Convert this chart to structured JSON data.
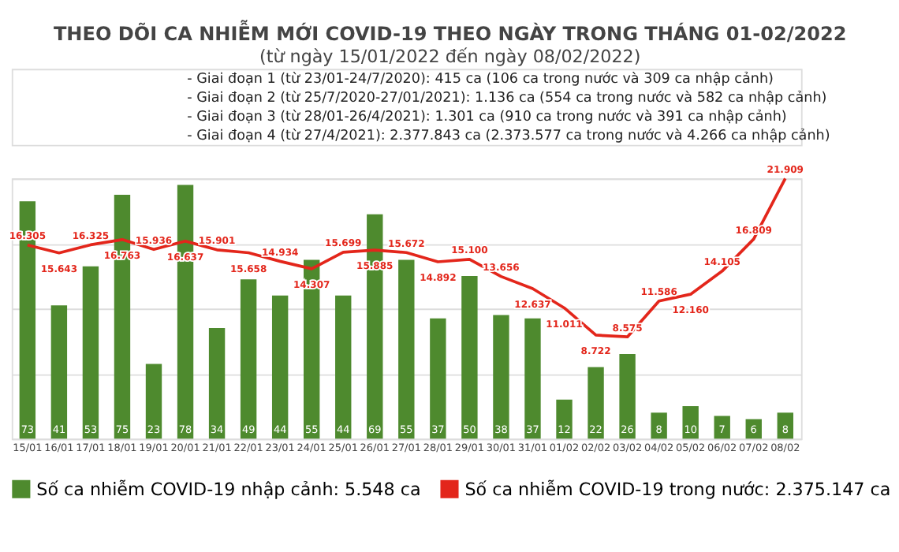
{
  "chart_data": {
    "type": "bar",
    "title": "THEO DÕI CA NHIỄM MỚI COVID-19 THEO NGÀY TRONG THÁNG 01-02/2022",
    "subtitle": "(từ ngày 15/01/2022 đến ngày 08/02/2022)",
    "annotations": [
      "- Giai đoạn 1 (từ 23/01-24/7/2020): 415 ca (106 ca trong nước và 309 ca nhập cảnh)",
      "- Giai đoạn 2 (từ 25/7/2020-27/01/2021): 1.136 ca (554 ca trong nước và 582 ca nhập cảnh)",
      "- Giai đoạn 3 (từ 28/01-26/4/2021): 1.301 ca (910 ca trong nước và 391 ca nhập cảnh)",
      "- Giai đoạn 4 (từ 27/4/2021): 2.377.843 ca (2.373.577 ca trong nước và 4.266 ca nhập cảnh)"
    ],
    "categories": [
      "15/01",
      "16/01",
      "17/01",
      "18/01",
      "19/01",
      "20/01",
      "21/01",
      "22/01",
      "23/01",
      "24/01",
      "25/01",
      "26/01",
      "27/01",
      "28/01",
      "29/01",
      "30/01",
      "31/01",
      "01/02",
      "02/02",
      "03/02",
      "04/02",
      "05/02",
      "06/02",
      "07/02",
      "08/02"
    ],
    "series": [
      {
        "name": "Số ca nhiễm COVID-19 nhập cảnh: 5.548 ca",
        "color": "#4e8a2e",
        "values": [
          73,
          41,
          53,
          75,
          23,
          78,
          34,
          49,
          44,
          55,
          44,
          69,
          55,
          37,
          50,
          38,
          37,
          12,
          22,
          26,
          8,
          10,
          7,
          6,
          8
        ]
      },
      {
        "name": "Số ca nhiễm COVID-19 trong nước: 2.375.147 ca",
        "type": "line",
        "axis": "y2",
        "color": "#e3261b",
        "values": [
          16305,
          15643,
          16325,
          16763,
          15936,
          16637,
          15901,
          15658,
          14934,
          14307,
          15699,
          15885,
          15672,
          14892,
          15100,
          13656,
          12637,
          11011,
          8722,
          8575,
          11586,
          12160,
          14105,
          16809,
          21909
        ],
        "value_labels": [
          "16.305",
          "15.643",
          "16.325",
          "16.763",
          "15.936",
          "16.637",
          "15.901",
          "15.658",
          "14.934",
          "14.307",
          "15.699",
          "15.885",
          "15.672",
          "14.892",
          "15.100",
          "13.656",
          "12.637",
          "11.011",
          "8.722",
          "8.575",
          "11.586",
          "12.160",
          "14.105",
          "16.809",
          "21.909"
        ]
      }
    ],
    "data_labels": true,
    "grid": "y",
    "tick_labels": "x",
    "legend": "bottom",
    "marker": "none",
    "line_style": "solid"
  }
}
